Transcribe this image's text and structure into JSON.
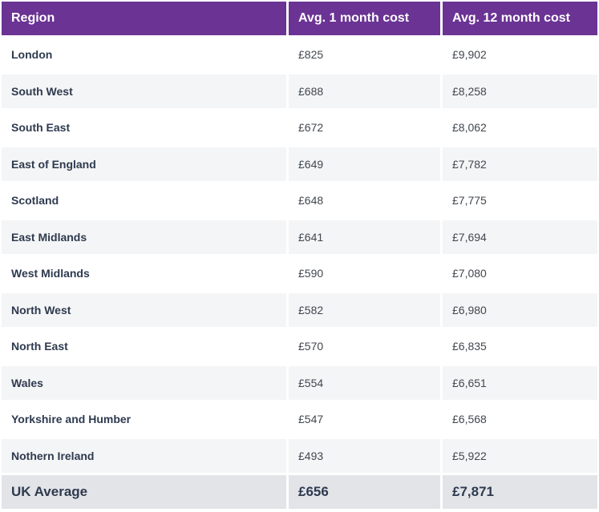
{
  "table": {
    "headers": {
      "region": "Region",
      "month1": "Avg. 1 month cost",
      "month12": "Avg. 12 month cost"
    },
    "rows": [
      {
        "region": "London",
        "month1": "£825",
        "month12": "£9,902"
      },
      {
        "region": "South West",
        "month1": "£688",
        "month12": "£8,258"
      },
      {
        "region": "South East",
        "month1": "£672",
        "month12": "£8,062"
      },
      {
        "region": "East of England",
        "month1": "£649",
        "month12": "£7,782"
      },
      {
        "region": "Scotland",
        "month1": "£648",
        "month12": "£7,775"
      },
      {
        "region": "East Midlands",
        "month1": "£641",
        "month12": "£7,694"
      },
      {
        "region": "West Midlands",
        "month1": "£590",
        "month12": "£7,080"
      },
      {
        "region": "North West",
        "month1": "£582",
        "month12": "£6,980"
      },
      {
        "region": "North East",
        "month1": "£570",
        "month12": "£6,835"
      },
      {
        "region": "Wales",
        "month1": "£554",
        "month12": "£6,651"
      },
      {
        "region": "Yorkshire and Humber",
        "month1": "£547",
        "month12": "£6,568"
      },
      {
        "region": "Nothern Ireland",
        "month1": "£493",
        "month12": "£5,922"
      }
    ],
    "footer": {
      "region": "UK Average",
      "month1": "£656",
      "month12": "£7,871"
    },
    "colors": {
      "header_bg": "#6a3394",
      "stripe_bg": "#f4f5f6",
      "footer_bg": "#e3e4e8",
      "text": "#2e3a4f"
    }
  }
}
